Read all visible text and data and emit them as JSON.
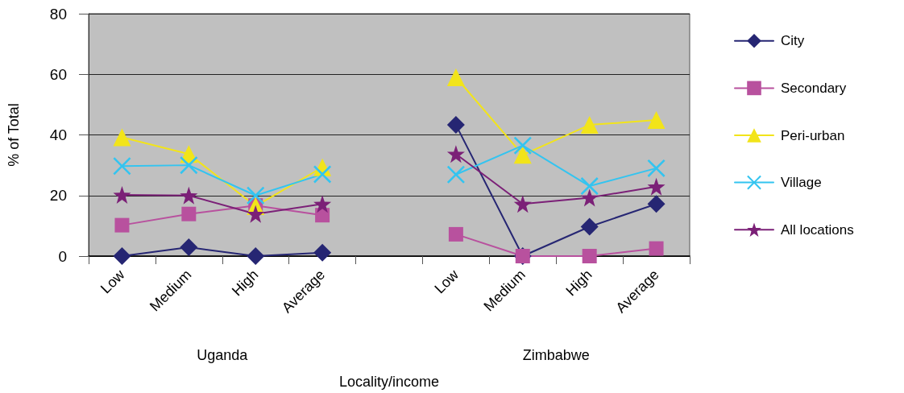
{
  "chart_data": {
    "type": "line",
    "xlabel": "Locality/income",
    "ylabel": "% of Total",
    "categories": [
      "Low",
      "Medium",
      "High",
      "Average",
      null,
      "Low",
      "Medium",
      "High",
      "Average"
    ],
    "annotations": [
      "Uganda",
      "Zimbabwe"
    ],
    "series": [
      {
        "name": "City",
        "color": "#262673",
        "marker": "diamond",
        "values": [
          0,
          2.9,
          0,
          1.1,
          null,
          43.3,
          0,
          9.7,
          17.2
        ]
      },
      {
        "name": "Secondary",
        "color": "#b8519e",
        "marker": "square",
        "values": [
          10.2,
          13.9,
          16.7,
          13.5,
          null,
          7.2,
          0,
          0,
          2.5
        ]
      },
      {
        "name": "Peri-urban",
        "color": "#f2e41a",
        "marker": "triangle",
        "values": [
          39.2,
          33.7,
          16.5,
          29.3,
          null,
          59,
          33.4,
          43.3,
          44.9
        ]
      },
      {
        "name": "Village",
        "color": "#33c4f0",
        "marker": "cross",
        "values": [
          29.7,
          30,
          20,
          27,
          null,
          26.9,
          36.5,
          23.1,
          29
        ]
      },
      {
        "name": "All locations",
        "color": "#7b2077",
        "marker": "star",
        "values": [
          20.2,
          20,
          13.9,
          17.2,
          null,
          33.7,
          17.2,
          19.3,
          22.9
        ]
      }
    ],
    "ylim": [
      0,
      80
    ],
    "yticks": [
      0,
      20,
      40,
      60,
      80
    ],
    "grid": "y",
    "legend": "right",
    "line_style": "solid"
  }
}
